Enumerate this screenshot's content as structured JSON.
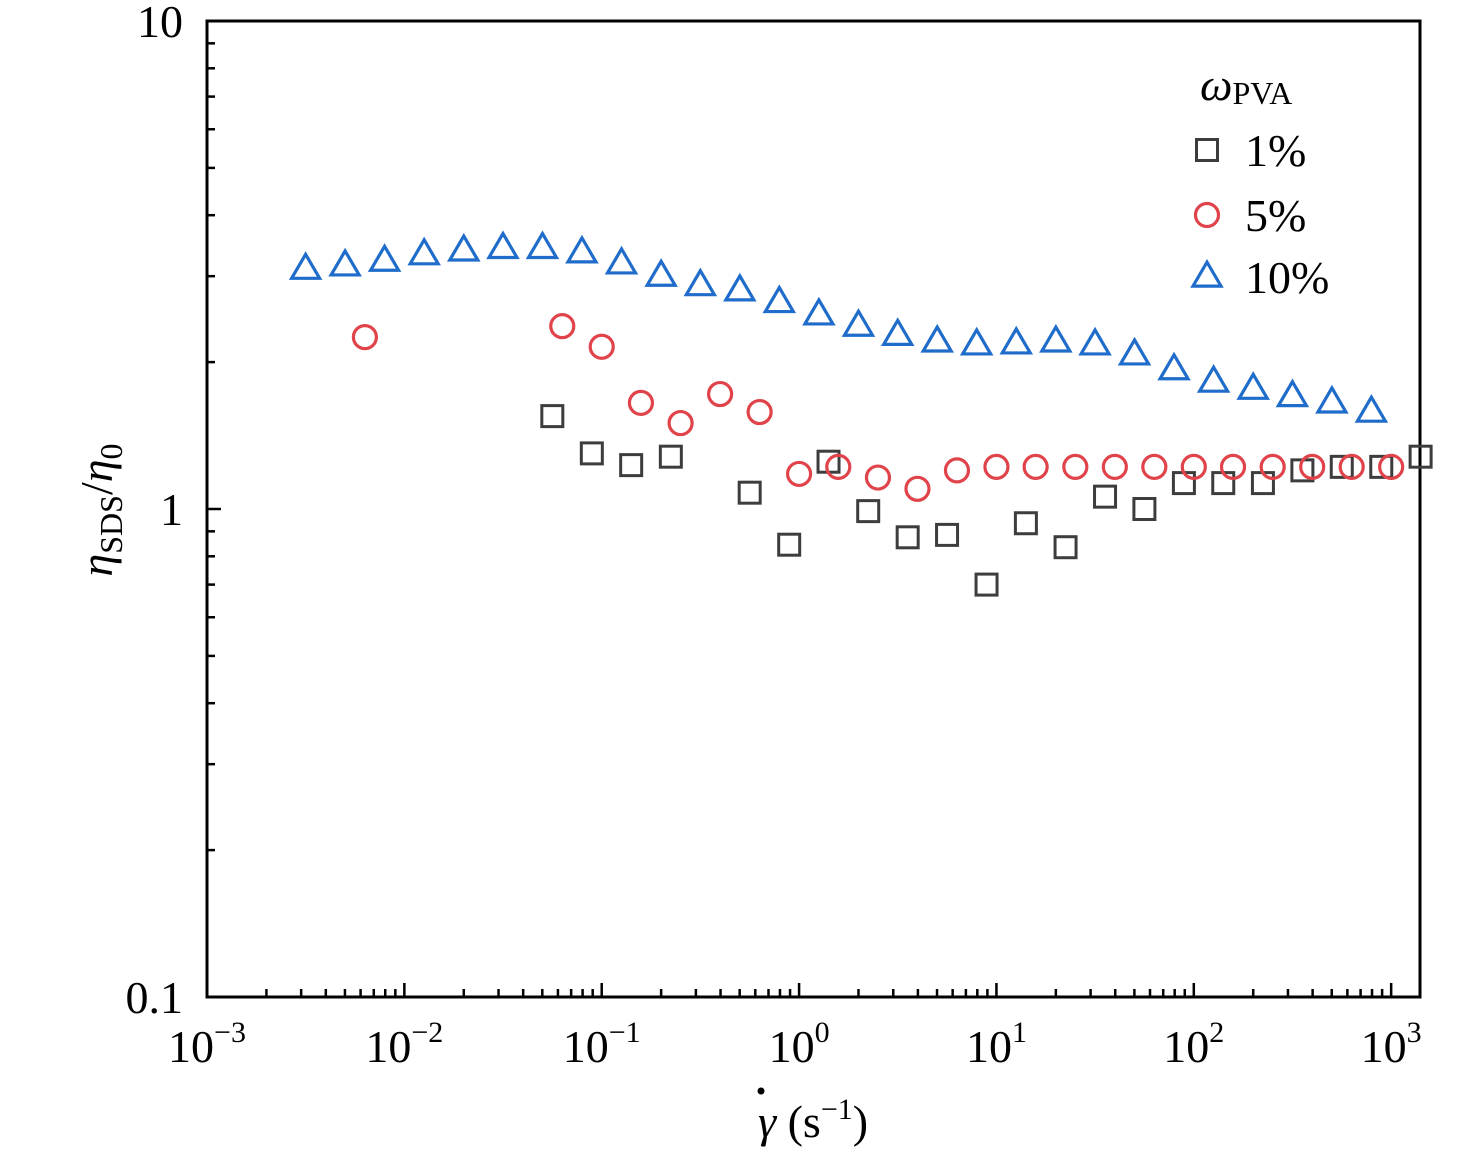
{
  "chart_data": {
    "type": "scatter",
    "x_scale": "log",
    "y_scale": "log",
    "xlim": [
      0.001,
      1400
    ],
    "ylim": [
      0.1,
      10
    ],
    "xlabel": {
      "symbol": "γ",
      "unit_open": " (s",
      "unit_exp": "−1",
      "unit_close": ")"
    },
    "ylabel": {
      "eta": "η",
      "sub1": "SDS",
      "slash": "/",
      "sub2": "0"
    },
    "x_ticks": [
      {
        "value": 0.001,
        "base": "10",
        "exp": "−3"
      },
      {
        "value": 0.01,
        "base": "10",
        "exp": "−2"
      },
      {
        "value": 0.1,
        "base": "10",
        "exp": "−1"
      },
      {
        "value": 1,
        "base": "10",
        "exp": "0"
      },
      {
        "value": 10,
        "base": "10",
        "exp": "1"
      },
      {
        "value": 100,
        "base": "10",
        "exp": "2"
      },
      {
        "value": 1000,
        "base": "10",
        "exp": "3"
      }
    ],
    "y_ticks": [
      {
        "value": 0.1,
        "label": "0.1"
      },
      {
        "value": 1,
        "label": "1"
      },
      {
        "value": 10,
        "label": "10"
      }
    ],
    "grid": false,
    "legend": {
      "title_symbol": "ω",
      "title_sub": "PVA",
      "position": "top-right"
    },
    "series": [
      {
        "name": "1%",
        "marker": "square",
        "color": "#3d3d3d",
        "x": [
          0.0562,
          0.0891,
          0.141,
          0.224,
          0.562,
          0.891,
          1.41,
          2.24,
          3.55,
          5.62,
          8.91,
          14.1,
          22.4,
          35.5,
          56.2,
          89.1,
          141,
          224,
          355,
          562,
          891,
          1410
        ],
        "y": [
          1.55,
          1.3,
          1.23,
          1.28,
          1.08,
          0.845,
          1.25,
          0.99,
          0.875,
          0.885,
          0.7,
          0.935,
          0.835,
          1.06,
          1.0,
          1.13,
          1.13,
          1.13,
          1.2,
          1.22,
          1.22,
          1.28
        ]
      },
      {
        "name": "5%",
        "marker": "circle",
        "color": "#e0434a",
        "x": [
          0.00631,
          0.0631,
          0.1,
          0.158,
          0.251,
          0.398,
          0.631,
          1.0,
          1.58,
          2.51,
          3.98,
          6.31,
          10.0,
          15.8,
          25.1,
          39.8,
          63.1,
          100,
          158,
          251,
          398,
          631,
          1000
        ],
        "y": [
          2.25,
          2.37,
          2.15,
          1.65,
          1.5,
          1.72,
          1.58,
          1.18,
          1.22,
          1.16,
          1.1,
          1.2,
          1.22,
          1.22,
          1.22,
          1.22,
          1.22,
          1.22,
          1.22,
          1.22,
          1.22,
          1.22,
          1.22
        ]
      },
      {
        "name": "10%",
        "marker": "triangle",
        "color": "#1f6ccb",
        "x": [
          0.00316,
          0.00501,
          0.00794,
          0.0126,
          0.02,
          0.0316,
          0.0501,
          0.0794,
          0.126,
          0.2,
          0.316,
          0.501,
          0.794,
          1.26,
          2.0,
          3.16,
          5.01,
          7.94,
          12.6,
          20.0,
          31.6,
          50.1,
          79.4,
          126,
          200,
          316,
          501,
          794
        ],
        "y": [
          3.1,
          3.15,
          3.22,
          3.32,
          3.38,
          3.42,
          3.42,
          3.35,
          3.18,
          3.0,
          2.87,
          2.8,
          2.65,
          2.5,
          2.37,
          2.27,
          2.2,
          2.17,
          2.18,
          2.2,
          2.17,
          2.07,
          1.93,
          1.82,
          1.76,
          1.7,
          1.65,
          1.58
        ]
      }
    ]
  }
}
